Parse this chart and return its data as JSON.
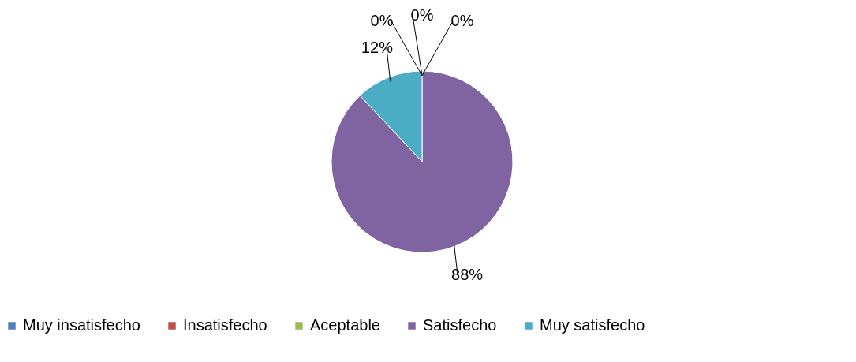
{
  "chart_data": {
    "type": "pie",
    "categories": [
      "Muy insatisfecho",
      "Insatisfecho",
      "Aceptable",
      "Satisfecho",
      "Muy satisfecho"
    ],
    "values": [
      0,
      0,
      0,
      88,
      12
    ],
    "colors": [
      "#4f81bd",
      "#c0504d",
      "#9bbb59",
      "#8064a2",
      "#4bacc6"
    ],
    "value_labels": [
      "0%",
      "0%",
      "0%",
      "88%",
      "12%"
    ],
    "legend": "bottom"
  }
}
